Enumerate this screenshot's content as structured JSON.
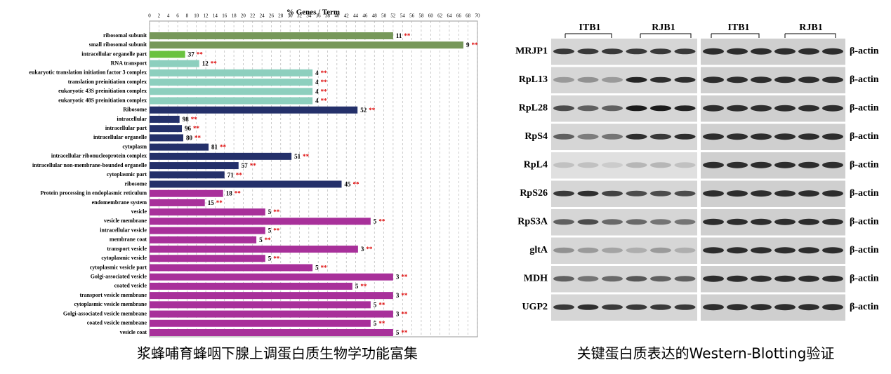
{
  "chart_data": {
    "type": "bar",
    "orientation": "horizontal",
    "title": "% Genes / Term",
    "categories": [
      "ribosomal subunit",
      "small ribosomal subunit",
      "intracellular organelle part",
      "RNA transport",
      "eukaryotic translation initiation factor 3 complex",
      "translation preinitiation complex",
      "eukaryotic 43S preinitiation complex",
      "eukaryotic 48S preinitiation complex",
      "Ribosome",
      "intracellular",
      "intracellular part",
      "intracellular organelle",
      "cytoplasm",
      "intracellular ribonucleoprotein complex",
      "intracellular non-membrane-bounded organelle",
      "cytoplasmic part",
      "ribosome",
      "Protein processing in endoplasmic reticulum",
      "endomembrane system",
      "vesicle",
      "vesicle membrane",
      "intracellular vesicle",
      "membrane coat",
      "transport vesicle",
      "cytoplasmic vesicle",
      "cytoplasmic vesicle part",
      "Golgi-associated vesicle",
      "coated vesicle",
      "transport vesicle membrane",
      "cytoplasmic vesicle membrane",
      "Golgi-associated vesicle membrane",
      "coated vesicle membrane",
      "vesicle coat"
    ],
    "values": [
      52,
      67,
      7.6,
      10.6,
      34.8,
      34.8,
      34.8,
      34.8,
      44.4,
      6.4,
      6.9,
      7.2,
      12.6,
      30.3,
      19,
      16,
      41,
      15.7,
      11.8,
      24.7,
      47.2,
      24.7,
      22.8,
      44.5,
      24.7,
      34.8,
      52,
      43.3,
      52,
      47.2,
      52,
      47.2,
      52
    ],
    "gene_counts": [
      11,
      9,
      37,
      12,
      4,
      4,
      4,
      4,
      52,
      98,
      96,
      80,
      81,
      51,
      57,
      71,
      45,
      18,
      15,
      5,
      5,
      5,
      5,
      3,
      5,
      5,
      3,
      5,
      3,
      5,
      3,
      5,
      5
    ],
    "significance": "**",
    "colors": [
      "#77985a",
      "#77985a",
      "#6ac23f",
      "#8dcfbe",
      "#8dcfbe",
      "#8dcfbe",
      "#8dcfbe",
      "#8dcfbe",
      "#24306a",
      "#24306a",
      "#24306a",
      "#24306a",
      "#24306a",
      "#24306a",
      "#24306a",
      "#24306a",
      "#24306a",
      "#a8309a",
      "#a8309a",
      "#a8309a",
      "#a8309a",
      "#a8309a",
      "#a8309a",
      "#a8309a",
      "#a8309a",
      "#a8309a",
      "#a8309a",
      "#a8309a",
      "#a8309a",
      "#a8309a",
      "#a8309a",
      "#a8309a",
      "#a8309a"
    ],
    "xlim": [
      0,
      70
    ],
    "xticks": [
      0,
      2,
      4,
      6,
      8,
      10,
      12,
      14,
      16,
      18,
      20,
      22,
      24,
      26,
      28,
      30,
      32,
      34,
      36,
      38,
      40,
      42,
      44,
      46,
      48,
      50,
      52,
      54,
      56,
      58,
      60,
      62,
      64,
      66,
      68,
      70
    ],
    "grid": true
  },
  "blot": {
    "groups": [
      "ITB1",
      "RJB1",
      "ITB1",
      "RJB1"
    ],
    "proteins": [
      "MRJP1",
      "RpL13",
      "RpL28",
      "RpS4",
      "RpL4",
      "RpS26",
      "RpS3A",
      "gltA",
      "MDH",
      "UGP2"
    ],
    "controls": [
      "β-actin",
      "β-actin",
      "β-actin",
      "β-actin",
      "β-actin",
      "β-actin",
      "β-actin",
      "β-actin",
      "β-actin",
      "β-actin"
    ]
  },
  "captions": {
    "left": "浆蜂哺育蜂咽下腺上调蛋白质生物学功能富集",
    "right": "关键蛋白质表达的Western-Blotting验证"
  }
}
